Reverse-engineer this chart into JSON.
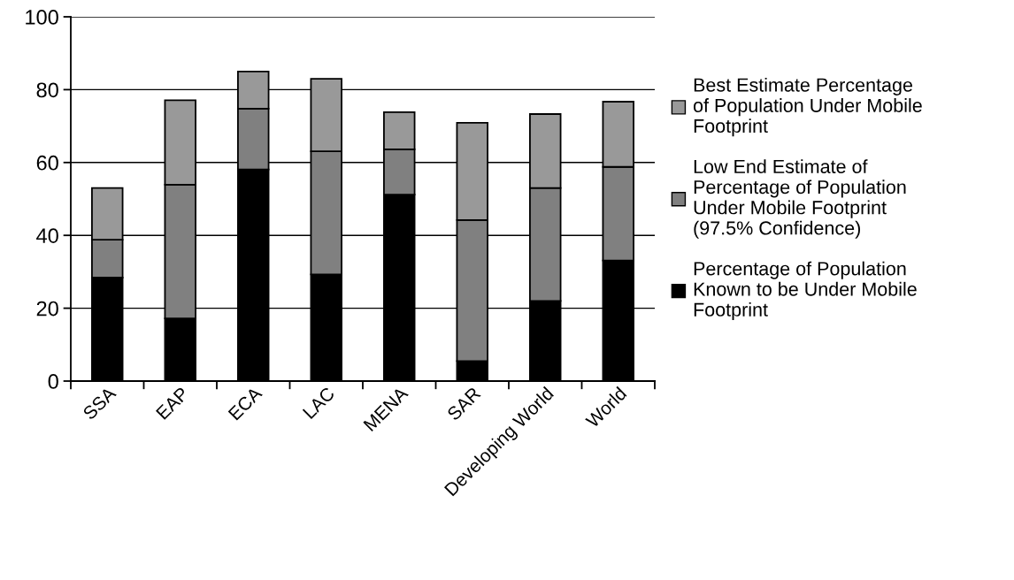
{
  "chart_data": {
    "type": "bar",
    "stacked": true,
    "categories": [
      "SSA",
      "EAP",
      "ECA",
      "LAC",
      "MENA",
      "SAR",
      "Developing World",
      "World"
    ],
    "series": [
      {
        "name": "Percentage of Population Known to be Under Mobile Footprint",
        "color": "#000000",
        "values": [
          28.4,
          17.2,
          58.1,
          29.3,
          51.2,
          5.5,
          22.0,
          33.1
        ]
      },
      {
        "name": "Low End Estimate of Percentage of Population Under Mobile Footprint (97.5% Confidence)",
        "color": "#808080",
        "values": [
          10.4,
          36.7,
          16.7,
          33.8,
          12.4,
          38.7,
          31.0,
          25.7
        ]
      },
      {
        "name": "Best Estimate Percentage of Population Under Mobile Footprint",
        "color": "#999999",
        "values": [
          14.2,
          23.2,
          10.2,
          19.9,
          10.2,
          26.7,
          20.3,
          17.9
        ]
      }
    ],
    "ylim": [
      0,
      100
    ],
    "yticks": [
      0,
      20,
      40,
      60,
      80,
      100
    ],
    "grid": "y",
    "legend": "right"
  }
}
